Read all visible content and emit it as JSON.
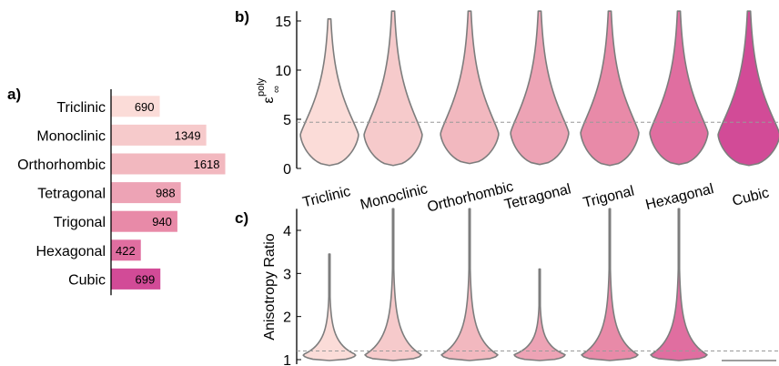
{
  "panel_labels": {
    "a": "a)",
    "b": "b)",
    "c": "c)"
  },
  "colors": [
    "#fbdcd8",
    "#f6cacb",
    "#f2b8bf",
    "#eda3b5",
    "#e88aa8",
    "#e06ea0",
    "#d24b97"
  ],
  "chart_data": [
    {
      "type": "bar",
      "orientation": "horizontal",
      "panel": "a)",
      "categories": [
        "Triclinic",
        "Monoclinic",
        "Orthorhombic",
        "Tetragonal",
        "Trigonal",
        "Hexagonal",
        "Cubic"
      ],
      "values": [
        690,
        1349,
        1618,
        988,
        940,
        422,
        699
      ],
      "data_labels": [
        "690",
        "1349",
        "1618",
        "988",
        "940",
        "422",
        "699"
      ],
      "xlim": [
        0,
        1650
      ]
    },
    {
      "type": "violin",
      "panel": "b)",
      "ylabel": "ε",
      "ylabel_sub": "∞",
      "ylabel_sup": "poly",
      "ylim": [
        0,
        16
      ],
      "yticks": [
        "0",
        "5",
        "10",
        "15"
      ],
      "ytick_values": [
        0,
        5,
        10,
        15
      ],
      "reference_line": 4.7,
      "categories": [
        "Triclinic",
        "Monoclinic",
        "Orthorhombic",
        "Tetragonal",
        "Trigonal",
        "Hexagonal",
        "Cubic"
      ],
      "series": [
        {
          "min": 0.3,
          "max": 15.2,
          "peak": 3.4
        },
        {
          "min": 0.3,
          "max": 16,
          "peak": 3.4
        },
        {
          "min": 0.5,
          "max": 16,
          "peak": 3.5
        },
        {
          "min": 0.4,
          "max": 16,
          "peak": 3.6
        },
        {
          "min": 0.3,
          "max": 16,
          "peak": 3.6
        },
        {
          "min": 0.4,
          "max": 16,
          "peak": 3.6
        },
        {
          "min": 0.3,
          "max": 16,
          "peak": 3.4
        }
      ]
    },
    {
      "type": "violin",
      "panel": "c)",
      "ylabel": "Anisotropy Ratio",
      "ylim": [
        1,
        4.5
      ],
      "yticks": [
        "1",
        "2",
        "3",
        "4"
      ],
      "ytick_values": [
        1,
        2,
        3,
        4
      ],
      "reference_line": 1.2,
      "categories": [
        "Triclinic",
        "Monoclinic",
        "Orthorhombic",
        "Tetragonal",
        "Trigonal",
        "Hexagonal",
        "Cubic"
      ],
      "series": [
        {
          "min": 1.0,
          "max": 3.45
        },
        {
          "min": 1.0,
          "max": 4.5
        },
        {
          "min": 1.0,
          "max": 4.5
        },
        {
          "min": 1.0,
          "max": 3.1
        },
        {
          "min": 1.0,
          "max": 4.5
        },
        {
          "min": 1.0,
          "max": 4.5
        },
        {
          "min": 1.0,
          "max": 1.0
        }
      ]
    }
  ]
}
